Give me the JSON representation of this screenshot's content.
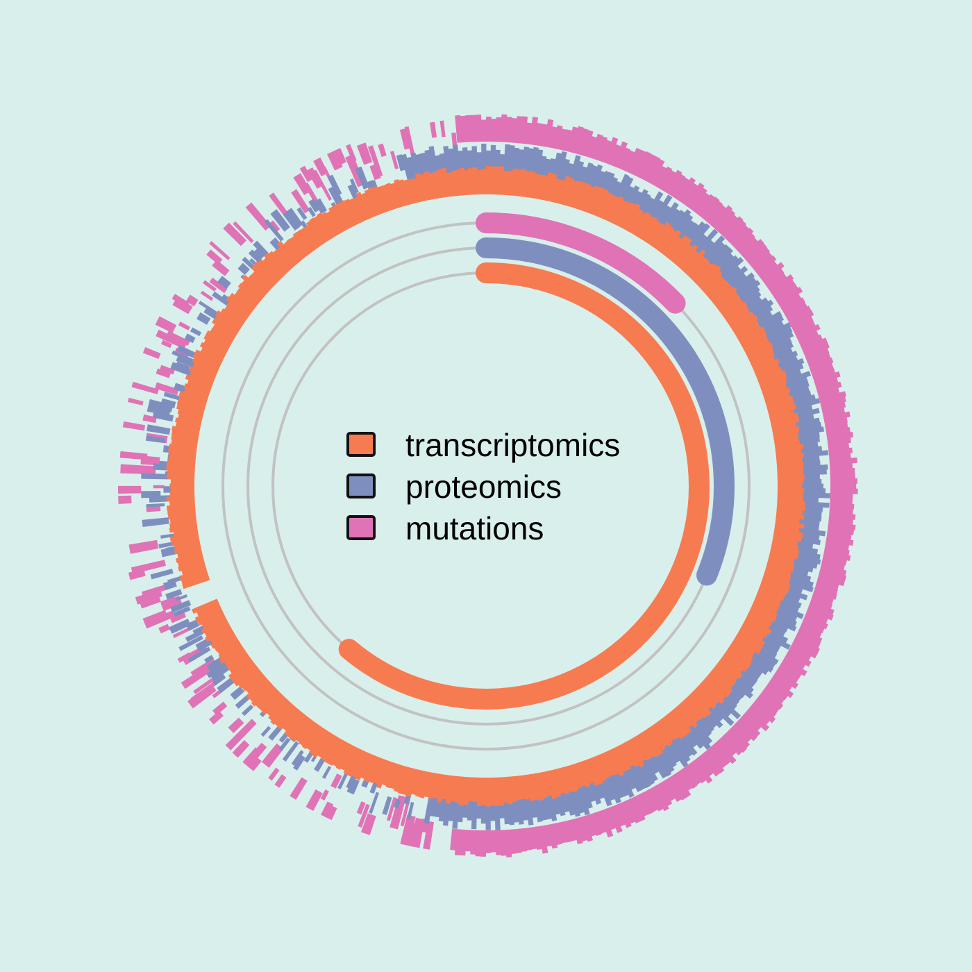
{
  "chart_data": {
    "type": "radial-bar",
    "title": "",
    "background": "#d9efec",
    "grid_color": "#c2c2c2",
    "legend": {
      "placement": "center",
      "entries": [
        {
          "label": "transcriptomics",
          "color": "#f77b50"
        },
        {
          "label": "proteomics",
          "color": "#7e8fbf"
        },
        {
          "label": "mutations",
          "color": "#e073b5"
        }
      ]
    },
    "angle_unit": "degrees clockwise from top",
    "summary_arcs": [
      {
        "name": "transcriptomics",
        "start": 0,
        "end": 220,
        "color": "#f77b50"
      },
      {
        "name": "proteomics",
        "start": 0,
        "end": 112,
        "color": "#7e8fbf"
      },
      {
        "name": "mutations",
        "start": 0,
        "end": 46,
        "color": "#e073b5"
      }
    ],
    "summary_tracks": 3,
    "outer_rings": [
      {
        "name": "transcriptomics",
        "color": "#f77b50",
        "coverage": "near-complete",
        "gap_start": 247,
        "gap_end": 251
      },
      {
        "name": "proteomics",
        "color": "#7e8fbf",
        "coverage": "partial, fragmented on left side"
      },
      {
        "name": "mutations",
        "color": "#e073b5",
        "coverage": "partial, fragmented on left side"
      }
    ]
  }
}
